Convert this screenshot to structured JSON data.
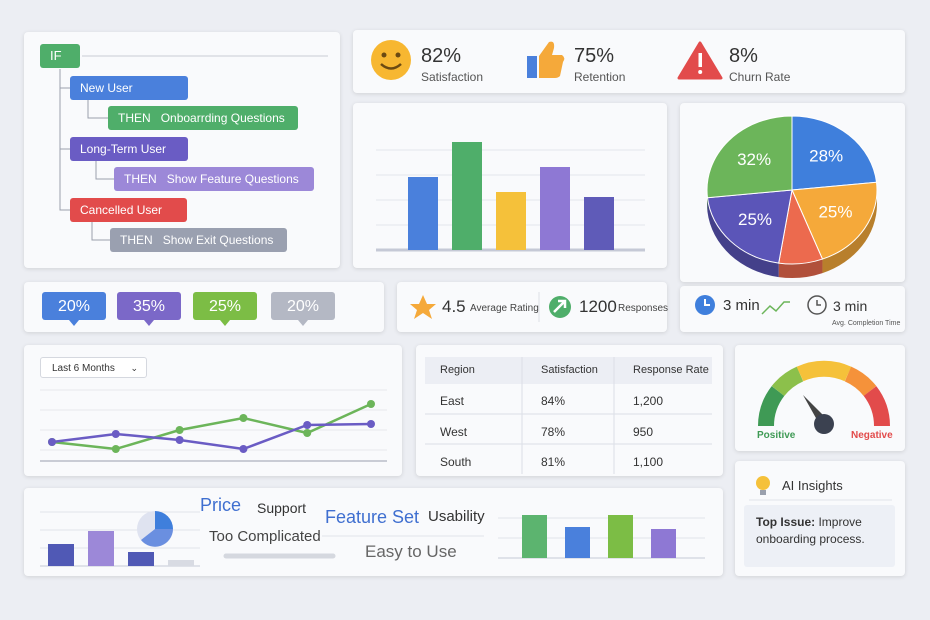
{
  "logic": {
    "if_label": "IF",
    "branches": [
      {
        "condition": "New User",
        "then": "THEN",
        "action": "Onboarrding Questions"
      },
      {
        "condition": "Long-Term User",
        "then": "THEN",
        "action": "Show Feature Questions"
      },
      {
        "condition": "Cancelled User",
        "then": "THEN",
        "action": "Show Exit Questions"
      }
    ]
  },
  "kpis": [
    {
      "value": "82%",
      "label": "Satisfaction"
    },
    {
      "value": "75%",
      "label": "Retention"
    },
    {
      "value": "8%",
      "label": "Churn Rate"
    }
  ],
  "bar_chart": {
    "type": "bar",
    "values": [
      73,
      108,
      58,
      83,
      53
    ],
    "colors": [
      "#4a80dc",
      "#4fae6a",
      "#f5c13a",
      "#8e78d4",
      "#5f5bb8"
    ]
  },
  "pie_chart": {
    "type": "pie",
    "values": [
      28,
      25,
      10,
      25,
      32
    ],
    "value_labels": [
      "28%",
      "25%",
      null,
      "25%",
      "32%"
    ],
    "colors": [
      "#3f7fdc",
      "#f5a93a",
      "#ec6a4e",
      "#5b55b8",
      "#6cb55a"
    ]
  },
  "tags": [
    {
      "label": "20%",
      "color": "#4a80dc"
    },
    {
      "label": "35%",
      "color": "#7b68c8"
    },
    {
      "label": "25%",
      "color": "#7cbd45"
    },
    {
      "label": "20%",
      "color": "#b4b8c4"
    }
  ],
  "rating": {
    "value": "4.5",
    "label": "Average Rating",
    "responses": "1200",
    "responses_label": "Responses"
  },
  "time": {
    "value_1": "3 min",
    "value_2": "3 min",
    "label": "Avg. Completion Time"
  },
  "line_chart": {
    "type": "line",
    "dropdown": "Last 6 Months",
    "series": [
      {
        "color": "#6cb55a",
        "values": [
          18,
          11,
          30,
          42,
          27,
          56
        ]
      },
      {
        "color": "#6a5cc4",
        "values": [
          18,
          26,
          20,
          11,
          35,
          36
        ]
      }
    ]
  },
  "table": {
    "headers": [
      "Region",
      "Satisfaction",
      "Response Rate"
    ],
    "rows": [
      [
        "East",
        "84%",
        "1,200"
      ],
      [
        "West",
        "78%",
        "950"
      ],
      [
        "South",
        "81%",
        "1,100"
      ]
    ]
  },
  "gauge": {
    "left_label": "Positive",
    "right_label": "Negative"
  },
  "insights": {
    "title": "AI Insights",
    "issue_label": "Top Issue:",
    "issue_text": "Improve onboarding process."
  },
  "word_cloud": [
    "Price",
    "Support",
    "Too Complicated",
    "Feature Set",
    "Usability",
    "Easy to Use"
  ],
  "mini_bars": {
    "type": "bar",
    "values": [
      22,
      35,
      14,
      6
    ],
    "colors": [
      "#5059b5",
      "#9c88d8",
      "#5059b5",
      "#d8dbe3"
    ]
  },
  "group_bars": {
    "type": "bar",
    "values": [
      43,
      31,
      43,
      29
    ],
    "colors": [
      "#5cb46f",
      "#4a80dc",
      "#7cbd45",
      "#8e78d4"
    ]
  }
}
